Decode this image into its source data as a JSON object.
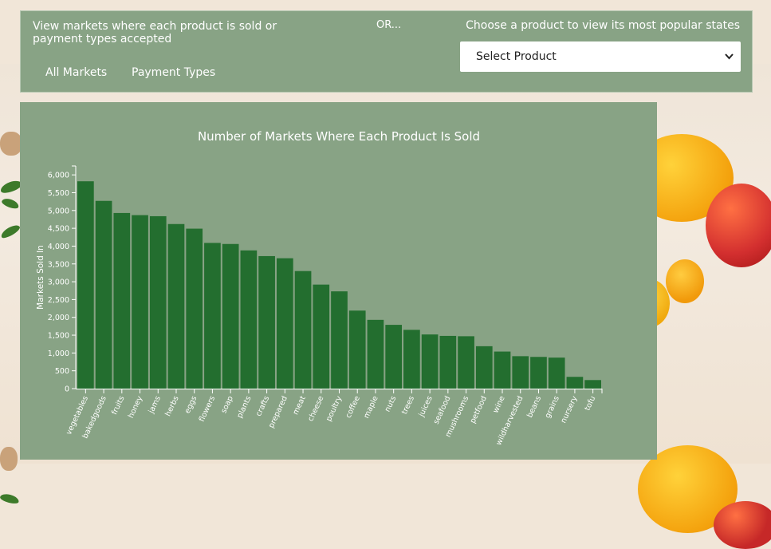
{
  "header": {
    "intro": "View markets where each product is sold or payment types accepted",
    "or_label": "OR...",
    "choose_label": "Choose a product to view its most popular states",
    "buttons": {
      "all_markets": "All Markets",
      "payment_types": "Payment Types"
    },
    "select": {
      "value": "Select Product",
      "chevron": "chevron-down-icon"
    }
  },
  "colors": {
    "panel": "#88a385",
    "bar": "#236e2f",
    "text": "#ffffff"
  },
  "chart_data": {
    "type": "bar",
    "title": "Number of Markets Where Each Product Is Sold",
    "xlabel": "",
    "ylabel": "Markets Sold In",
    "ylim": [
      0,
      6250
    ],
    "yticks": [
      0,
      500,
      1000,
      1500,
      2000,
      2500,
      3000,
      3500,
      4000,
      4500,
      5000,
      5500,
      6000
    ],
    "ytick_labels": [
      "0",
      "500",
      "1,000",
      "1,500",
      "2,000",
      "2,500",
      "3,000",
      "3,500",
      "4,000",
      "4,500",
      "5,000",
      "5,500",
      "6,000"
    ],
    "grid": false,
    "categories": [
      "vegetables",
      "bakedgoods",
      "fruits",
      "honey",
      "jams",
      "herbs",
      "eggs",
      "flowers",
      "soap",
      "plants",
      "crafts",
      "prepared",
      "meat",
      "cheese",
      "poultry",
      "coffee",
      "maple",
      "nuts",
      "trees",
      "juices",
      "seafood",
      "mushrooms",
      "petfood",
      "wine",
      "wildharvested",
      "beans",
      "grains",
      "nursery",
      "tofu"
    ],
    "values": [
      5820,
      5270,
      4930,
      4870,
      4840,
      4620,
      4490,
      4090,
      4060,
      3880,
      3720,
      3660,
      3300,
      2920,
      2730,
      2190,
      1930,
      1790,
      1650,
      1520,
      1480,
      1470,
      1190,
      1040,
      910,
      890,
      870,
      330,
      240
    ]
  }
}
